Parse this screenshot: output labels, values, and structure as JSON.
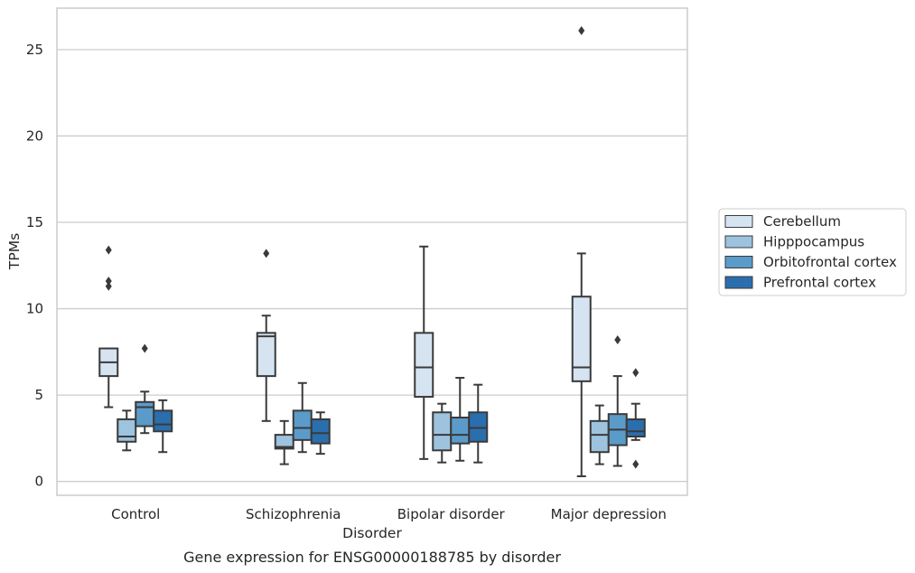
{
  "chart_data": {
    "type": "box",
    "caption": "Gene expression for ENSG00000188785 by disorder",
    "xlabel": "Disorder",
    "ylabel": "TPMs",
    "ylim": [
      -0.8,
      27.4
    ],
    "yticks": [
      0,
      5,
      10,
      15,
      20,
      25
    ],
    "grid": true,
    "legend_position": "right",
    "categories": [
      "Control",
      "Schizophrenia",
      "Bipolar disorder",
      "Major depression"
    ],
    "series": [
      {
        "name": "Cerebellum",
        "color": "#d6e4f2",
        "boxes": [
          {
            "whislo": 4.3,
            "q1": 6.1,
            "med": 6.9,
            "q3": 7.7,
            "whishi": 7.7,
            "fliers": [
              11.3,
              11.6,
              13.4
            ]
          },
          {
            "whislo": 3.5,
            "q1": 6.1,
            "med": 8.4,
            "q3": 8.6,
            "whishi": 9.6,
            "fliers": [
              13.2
            ]
          },
          {
            "whislo": 1.3,
            "q1": 4.9,
            "med": 6.6,
            "q3": 8.6,
            "whishi": 13.6,
            "fliers": []
          },
          {
            "whislo": 0.3,
            "q1": 5.8,
            "med": 6.6,
            "q3": 10.7,
            "whishi": 13.2,
            "fliers": [
              26.1
            ]
          }
        ]
      },
      {
        "name": "Hipppocampus",
        "color": "#9dc3de",
        "boxes": [
          {
            "whislo": 1.8,
            "q1": 2.3,
            "med": 2.6,
            "q3": 3.6,
            "whishi": 4.1,
            "fliers": []
          },
          {
            "whislo": 1.0,
            "q1": 1.9,
            "med": 2.0,
            "q3": 2.7,
            "whishi": 3.5,
            "fliers": []
          },
          {
            "whislo": 1.1,
            "q1": 1.8,
            "med": 2.7,
            "q3": 4.0,
            "whishi": 4.5,
            "fliers": []
          },
          {
            "whislo": 1.0,
            "q1": 1.7,
            "med": 2.7,
            "q3": 3.5,
            "whishi": 4.4,
            "fliers": []
          }
        ]
      },
      {
        "name": "Orbitofrontal cortex",
        "color": "#5b9bca",
        "boxes": [
          {
            "whislo": 2.8,
            "q1": 3.2,
            "med": 4.3,
            "q3": 4.6,
            "whishi": 5.2,
            "fliers": [
              7.7
            ]
          },
          {
            "whislo": 1.7,
            "q1": 2.4,
            "med": 3.1,
            "q3": 4.1,
            "whishi": 5.7,
            "fliers": []
          },
          {
            "whislo": 1.2,
            "q1": 2.2,
            "med": 2.7,
            "q3": 3.7,
            "whishi": 6.0,
            "fliers": []
          },
          {
            "whislo": 0.9,
            "q1": 2.1,
            "med": 3.0,
            "q3": 3.9,
            "whishi": 6.1,
            "fliers": [
              8.2
            ]
          }
        ]
      },
      {
        "name": "Prefrontal cortex",
        "color": "#2b6ead",
        "boxes": [
          {
            "whislo": 1.7,
            "q1": 2.9,
            "med": 3.3,
            "q3": 4.1,
            "whishi": 4.7,
            "fliers": []
          },
          {
            "whislo": 1.6,
            "q1": 2.2,
            "med": 2.8,
            "q3": 3.6,
            "whishi": 4.0,
            "fliers": []
          },
          {
            "whislo": 1.1,
            "q1": 2.3,
            "med": 3.1,
            "q3": 4.0,
            "whishi": 5.6,
            "fliers": []
          },
          {
            "whislo": 2.4,
            "q1": 2.6,
            "med": 2.9,
            "q3": 3.6,
            "whishi": 4.5,
            "fliers": [
              1.0,
              6.3
            ]
          }
        ]
      }
    ]
  }
}
